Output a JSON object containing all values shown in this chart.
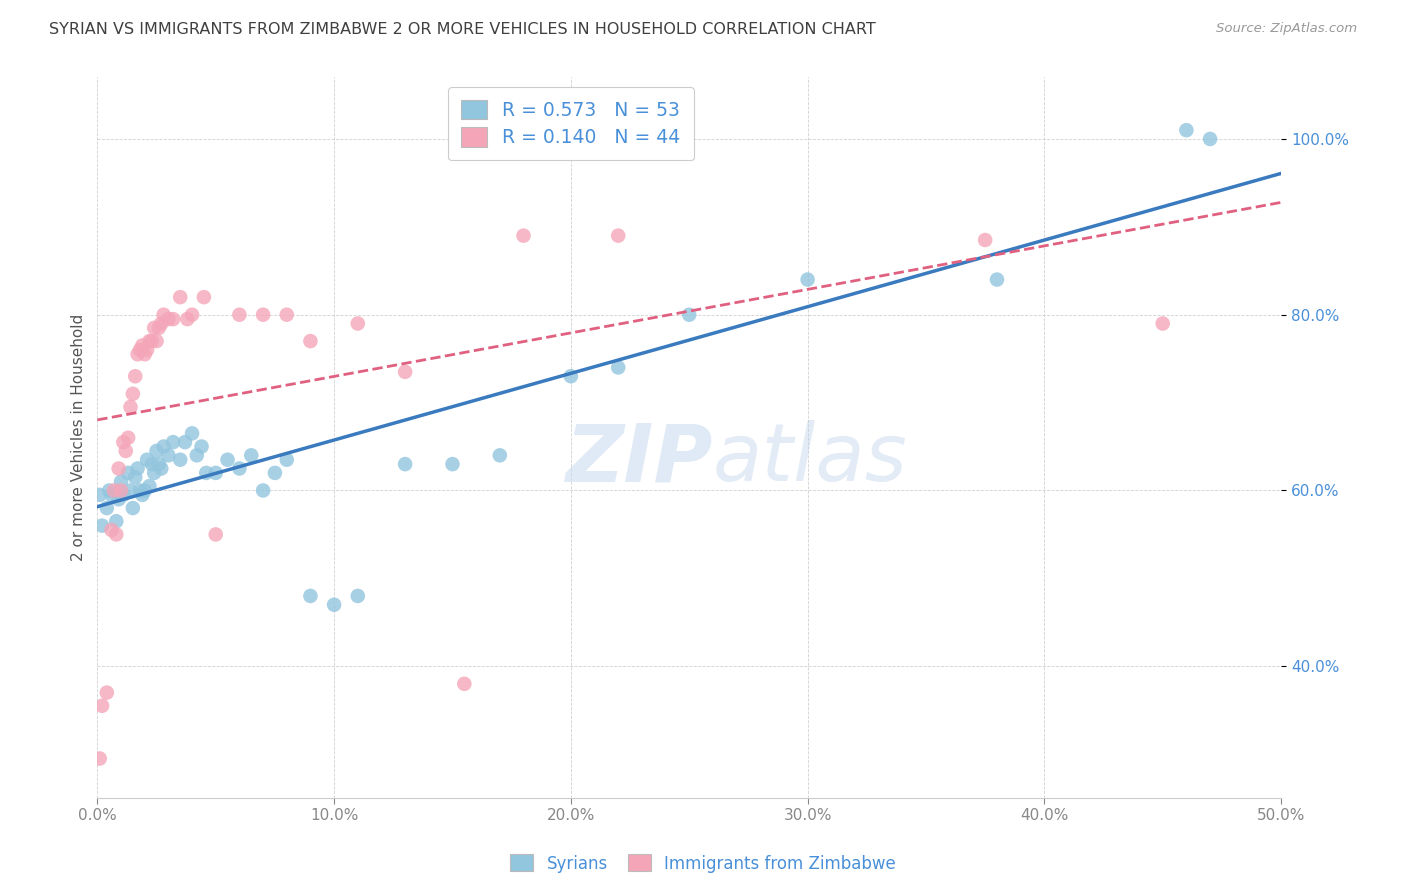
{
  "title": "SYRIAN VS IMMIGRANTS FROM ZIMBABWE 2 OR MORE VEHICLES IN HOUSEHOLD CORRELATION CHART",
  "source": "Source: ZipAtlas.com",
  "ylabel": "2 or more Vehicles in Household",
  "xmin": 0.0,
  "xmax": 0.5,
  "ymin": 0.25,
  "ymax": 1.07,
  "x_ticks": [
    0.0,
    0.1,
    0.2,
    0.3,
    0.4,
    0.5
  ],
  "x_tick_labels": [
    "0.0%",
    "10.0%",
    "20.0%",
    "30.0%",
    "40.0%",
    "50.0%"
  ],
  "y_ticks": [
    0.4,
    0.6,
    0.8,
    1.0
  ],
  "y_tick_labels": [
    "40.0%",
    "60.0%",
    "80.0%",
    "100.0%"
  ],
  "blue_color": "#92c5de",
  "pink_color": "#f4a6b8",
  "blue_line_color": "#3a7abf",
  "pink_line_color": "#e06080",
  "title_color": "#404040",
  "source_color": "#999999",
  "tick_color": "#4a90d9",
  "r_blue": 0.573,
  "n_blue": 53,
  "r_pink": 0.14,
  "n_pink": 44,
  "watermark_zip": "ZIP",
  "watermark_atlas": "atlas",
  "legend_label_blue": "Syrians",
  "legend_label_pink": "Immigrants from Zimbabwe",
  "syrians_x": [
    0.001,
    0.002,
    0.004,
    0.005,
    0.006,
    0.008,
    0.009,
    0.01,
    0.011,
    0.013,
    0.014,
    0.015,
    0.016,
    0.017,
    0.018,
    0.019,
    0.02,
    0.021,
    0.022,
    0.023,
    0.024,
    0.025,
    0.026,
    0.027,
    0.028,
    0.03,
    0.032,
    0.035,
    0.037,
    0.04,
    0.042,
    0.044,
    0.046,
    0.05,
    0.055,
    0.06,
    0.065,
    0.07,
    0.075,
    0.08,
    0.09,
    0.1,
    0.11,
    0.13,
    0.15,
    0.17,
    0.2,
    0.22,
    0.25,
    0.3,
    0.38,
    0.46,
    0.47
  ],
  "syrians_y": [
    0.595,
    0.56,
    0.58,
    0.6,
    0.595,
    0.565,
    0.59,
    0.61,
    0.595,
    0.62,
    0.6,
    0.58,
    0.615,
    0.625,
    0.6,
    0.595,
    0.6,
    0.635,
    0.605,
    0.63,
    0.62,
    0.645,
    0.63,
    0.625,
    0.65,
    0.64,
    0.655,
    0.635,
    0.655,
    0.665,
    0.64,
    0.65,
    0.62,
    0.62,
    0.635,
    0.625,
    0.64,
    0.6,
    0.62,
    0.635,
    0.48,
    0.47,
    0.48,
    0.63,
    0.63,
    0.64,
    0.73,
    0.74,
    0.8,
    0.84,
    0.84,
    1.01,
    1.0
  ],
  "zimbabwe_x": [
    0.001,
    0.002,
    0.004,
    0.006,
    0.007,
    0.008,
    0.009,
    0.01,
    0.011,
    0.012,
    0.013,
    0.014,
    0.015,
    0.016,
    0.017,
    0.018,
    0.019,
    0.02,
    0.021,
    0.022,
    0.023,
    0.024,
    0.025,
    0.026,
    0.027,
    0.028,
    0.03,
    0.032,
    0.035,
    0.038,
    0.04,
    0.045,
    0.05,
    0.06,
    0.07,
    0.08,
    0.09,
    0.11,
    0.13,
    0.155,
    0.18,
    0.22,
    0.375,
    0.45
  ],
  "zimbabwe_y": [
    0.295,
    0.355,
    0.37,
    0.555,
    0.6,
    0.55,
    0.625,
    0.6,
    0.655,
    0.645,
    0.66,
    0.695,
    0.71,
    0.73,
    0.755,
    0.76,
    0.765,
    0.755,
    0.76,
    0.77,
    0.77,
    0.785,
    0.77,
    0.785,
    0.79,
    0.8,
    0.795,
    0.795,
    0.82,
    0.795,
    0.8,
    0.82,
    0.55,
    0.8,
    0.8,
    0.8,
    0.77,
    0.79,
    0.735,
    0.38,
    0.89,
    0.89,
    0.885,
    0.79
  ]
}
